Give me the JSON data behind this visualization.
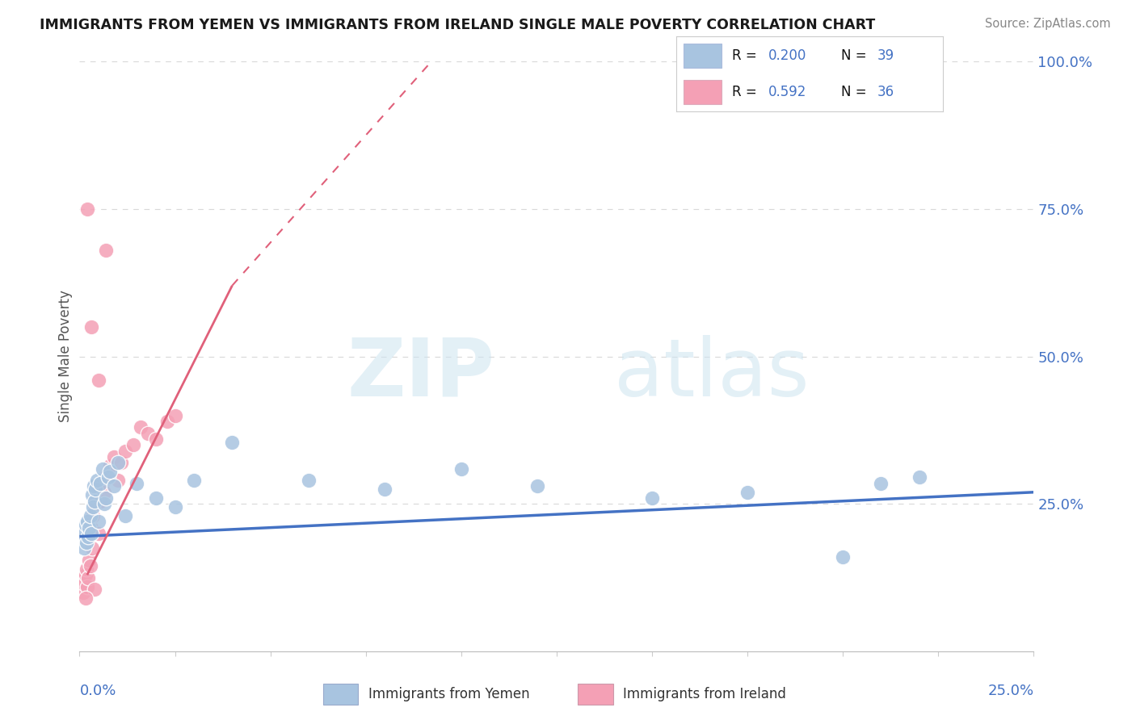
{
  "title": "IMMIGRANTS FROM YEMEN VS IMMIGRANTS FROM IRELAND SINGLE MALE POVERTY CORRELATION CHART",
  "source": "Source: ZipAtlas.com",
  "ylabel": "Single Male Poverty",
  "ylabel_right_ticks": [
    "100.0%",
    "75.0%",
    "50.0%",
    "25.0%"
  ],
  "ylabel_right_vals": [
    1.0,
    0.75,
    0.5,
    0.25
  ],
  "watermark_zip": "ZIP",
  "watermark_atlas": "atlas",
  "legend_r_yemen": "0.200",
  "legend_n_yemen": "39",
  "legend_r_ireland": "0.592",
  "legend_n_ireland": "36",
  "color_yemen": "#a8c4e0",
  "color_ireland": "#f4a0b5",
  "color_line_yemen": "#4472c4",
  "color_line_ireland": "#e0607a",
  "xlim": [
    0.0,
    0.25
  ],
  "ylim": [
    0.0,
    1.0
  ],
  "background_color": "#ffffff",
  "grid_color": "#d8d8d8",
  "yemen_x": [
    0.001,
    0.0012,
    0.0015,
    0.0018,
    0.002,
    0.0022,
    0.0025,
    0.0028,
    0.003,
    0.0032,
    0.0035,
    0.0038,
    0.004,
    0.0042,
    0.0045,
    0.005,
    0.0055,
    0.006,
    0.0065,
    0.007,
    0.0075,
    0.008,
    0.009,
    0.01,
    0.012,
    0.015,
    0.02,
    0.025,
    0.03,
    0.04,
    0.06,
    0.08,
    0.1,
    0.12,
    0.15,
    0.175,
    0.2,
    0.21,
    0.22
  ],
  "yemen_y": [
    0.2,
    0.175,
    0.215,
    0.185,
    0.22,
    0.195,
    0.21,
    0.23,
    0.2,
    0.265,
    0.245,
    0.28,
    0.255,
    0.275,
    0.29,
    0.22,
    0.285,
    0.31,
    0.25,
    0.26,
    0.295,
    0.305,
    0.28,
    0.32,
    0.23,
    0.285,
    0.26,
    0.245,
    0.29,
    0.355,
    0.29,
    0.275,
    0.31,
    0.28,
    0.26,
    0.27,
    0.16,
    0.285,
    0.295
  ],
  "ireland_x": [
    0.0008,
    0.001,
    0.0012,
    0.0015,
    0.0018,
    0.002,
    0.0022,
    0.0025,
    0.0028,
    0.003,
    0.0032,
    0.0035,
    0.004,
    0.0045,
    0.005,
    0.0055,
    0.006,
    0.0065,
    0.007,
    0.008,
    0.009,
    0.01,
    0.011,
    0.012,
    0.014,
    0.016,
    0.018,
    0.02,
    0.023,
    0.025,
    0.005,
    0.003,
    0.007,
    0.002,
    0.004,
    0.0015
  ],
  "ireland_y": [
    0.12,
    0.1,
    0.115,
    0.13,
    0.14,
    0.11,
    0.125,
    0.155,
    0.145,
    0.21,
    0.175,
    0.23,
    0.25,
    0.28,
    0.2,
    0.255,
    0.285,
    0.27,
    0.295,
    0.315,
    0.33,
    0.29,
    0.32,
    0.34,
    0.35,
    0.38,
    0.37,
    0.36,
    0.39,
    0.4,
    0.46,
    0.55,
    0.68,
    0.75,
    0.105,
    0.09
  ],
  "ireland_line_solid": [
    [
      0.002,
      0.13
    ],
    [
      0.04,
      0.62
    ]
  ],
  "ireland_line_dashed": [
    [
      0.04,
      0.62
    ],
    [
      0.095,
      1.02
    ]
  ],
  "yemen_line": [
    [
      0.0,
      0.195
    ],
    [
      0.25,
      0.27
    ]
  ]
}
